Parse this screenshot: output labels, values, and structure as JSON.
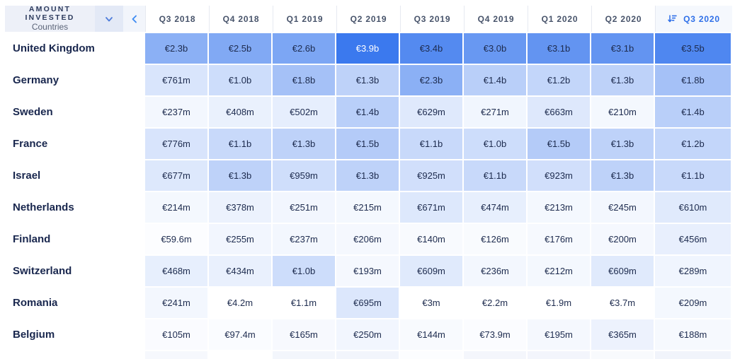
{
  "panel": {
    "title": "AMOUNT\nINVESTED",
    "subtitle": "Countries",
    "dropdown_icon": "chevron-down",
    "collapse_icon": "chevron-left"
  },
  "sort": {
    "column": "Q3 2020",
    "direction": "descending",
    "icon": "sort-descending"
  },
  "colors": {
    "accent_blue": "#2e6fe8",
    "heatmap_max": "#3b79ee",
    "heatmap_min": "#ffffff",
    "row_label_text": "#19274e",
    "cell_text": "#1d2b4e",
    "cell_text_inverse": "#ffffff",
    "header_text": "#47536a",
    "panel_bg": "#edf0f8"
  },
  "chart_data": {
    "type": "heatmap",
    "title": "Amount Invested",
    "row_dimension": "Countries",
    "unit": "EUR",
    "columns": [
      "Q3 2018",
      "Q4 2018",
      "Q1 2019",
      "Q2 2019",
      "Q3 2019",
      "Q4 2019",
      "Q1 2020",
      "Q2 2020",
      "Q3 2020"
    ],
    "color_domain_max_millions": 3900,
    "rows": [
      {
        "country": "United Kingdom",
        "display": [
          "€2.3b",
          "€2.5b",
          "€2.6b",
          "€3.9b",
          "€3.4b",
          "€3.0b",
          "€3.1b",
          "€3.1b",
          "€3.5b"
        ],
        "values_millions": [
          2300,
          2500,
          2600,
          3900,
          3400,
          3000,
          3100,
          3100,
          3500
        ]
      },
      {
        "country": "Germany",
        "display": [
          "€761m",
          "€1.0b",
          "€1.8b",
          "€1.3b",
          "€2.3b",
          "€1.4b",
          "€1.2b",
          "€1.3b",
          "€1.8b"
        ],
        "values_millions": [
          761,
          1000,
          1800,
          1300,
          2300,
          1400,
          1200,
          1300,
          1800
        ]
      },
      {
        "country": "Sweden",
        "display": [
          "€237m",
          "€408m",
          "€502m",
          "€1.4b",
          "€629m",
          "€271m",
          "€663m",
          "€210m",
          "€1.4b"
        ],
        "values_millions": [
          237,
          408,
          502,
          1400,
          629,
          271,
          663,
          210,
          1400
        ]
      },
      {
        "country": "France",
        "display": [
          "€776m",
          "€1.1b",
          "€1.3b",
          "€1.5b",
          "€1.1b",
          "€1.0b",
          "€1.5b",
          "€1.3b",
          "€1.2b"
        ],
        "values_millions": [
          776,
          1100,
          1300,
          1500,
          1100,
          1000,
          1500,
          1300,
          1200
        ]
      },
      {
        "country": "Israel",
        "display": [
          "€677m",
          "€1.3b",
          "€959m",
          "€1.3b",
          "€925m",
          "€1.1b",
          "€923m",
          "€1.3b",
          "€1.1b"
        ],
        "values_millions": [
          677,
          1300,
          959,
          1300,
          925,
          1100,
          923,
          1300,
          1100
        ]
      },
      {
        "country": "Netherlands",
        "display": [
          "€214m",
          "€378m",
          "€251m",
          "€215m",
          "€671m",
          "€474m",
          "€213m",
          "€245m",
          "€610m"
        ],
        "values_millions": [
          214,
          378,
          251,
          215,
          671,
          474,
          213,
          245,
          610
        ]
      },
      {
        "country": "Finland",
        "display": [
          "€59.6m",
          "€255m",
          "€237m",
          "€206m",
          "€140m",
          "€126m",
          "€176m",
          "€200m",
          "€456m"
        ],
        "values_millions": [
          59.6,
          255,
          237,
          206,
          140,
          126,
          176,
          200,
          456
        ]
      },
      {
        "country": "Switzerland",
        "display": [
          "€468m",
          "€434m",
          "€1.0b",
          "€193m",
          "€609m",
          "€236m",
          "€212m",
          "€609m",
          "€289m"
        ],
        "values_millions": [
          468,
          434,
          1000,
          193,
          609,
          236,
          212,
          609,
          289
        ]
      },
      {
        "country": "Romania",
        "display": [
          "€241m",
          "€4.2m",
          "€1.1m",
          "€695m",
          "€3m",
          "€2.2m",
          "€1.9m",
          "€3.7m",
          "€209m"
        ],
        "values_millions": [
          241,
          4.2,
          1.1,
          695,
          3,
          2.2,
          1.9,
          3.7,
          209
        ]
      },
      {
        "country": "Belgium",
        "display": [
          "€105m",
          "€97.4m",
          "€165m",
          "€250m",
          "€144m",
          "€73.9m",
          "€195m",
          "€365m",
          "€188m"
        ],
        "values_millions": [
          105,
          97.4,
          165,
          250,
          144,
          73.9,
          195,
          365,
          188
        ]
      }
    ],
    "partial_row_colors": [
      "#f6f8fd",
      "#ffffff",
      "#f3f6fc",
      "#f2f5fc",
      "#fcfdff",
      "#f4f6fc",
      "#f3f5fc",
      "#f8fafd",
      "#f1f4fb"
    ]
  }
}
